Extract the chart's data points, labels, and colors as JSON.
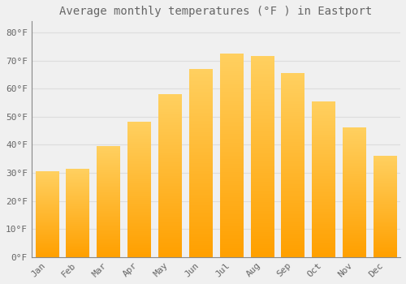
{
  "title": "Average monthly temperatures (°F ) in Eastport",
  "months": [
    "Jan",
    "Feb",
    "Mar",
    "Apr",
    "May",
    "Jun",
    "Jul",
    "Aug",
    "Sep",
    "Oct",
    "Nov",
    "Dec"
  ],
  "values": [
    30.5,
    31.5,
    39.5,
    48,
    58,
    67,
    72.5,
    71.5,
    65.5,
    55.5,
    46,
    36
  ],
  "bar_color_top": "#FFD060",
  "bar_color_bottom": "#FFA000",
  "background_color": "#F0F0F0",
  "grid_color": "#DDDDDD",
  "text_color": "#666666",
  "ylim": [
    0,
    84
  ],
  "yticks": [
    0,
    10,
    20,
    30,
    40,
    50,
    60,
    70,
    80
  ],
  "ytick_labels": [
    "0°F",
    "10°F",
    "20°F",
    "30°F",
    "40°F",
    "50°F",
    "60°F",
    "70°F",
    "80°F"
  ],
  "title_fontsize": 10,
  "tick_fontsize": 8,
  "font_family": "monospace"
}
